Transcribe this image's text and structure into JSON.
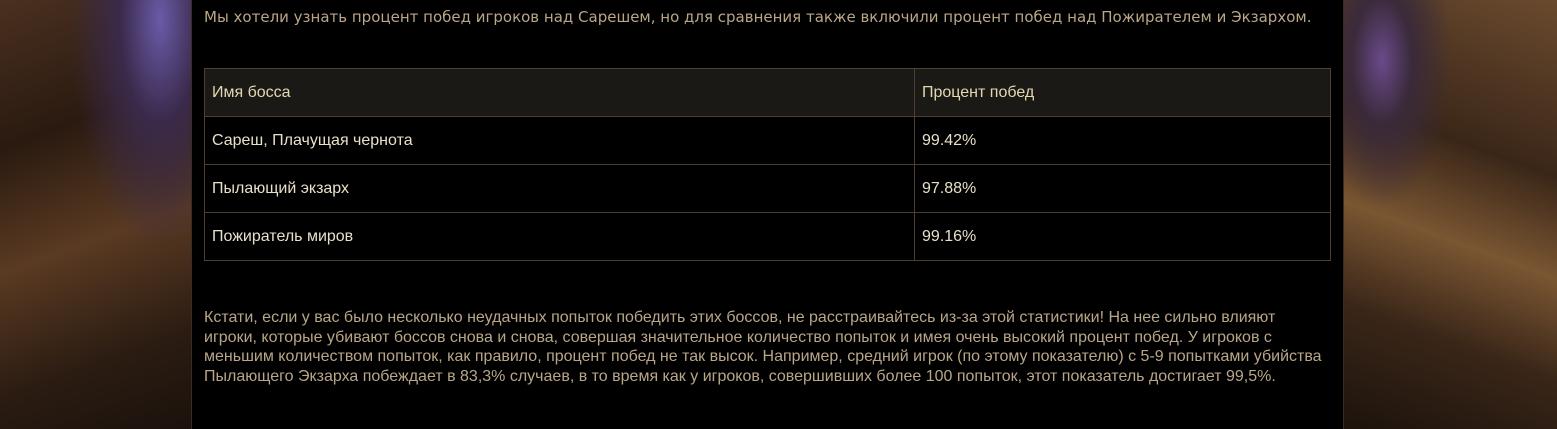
{
  "intro": "Мы хотели узнать процент побед игроков над Сарешем, но для сравнения также включили процент побед над Пожирателем и Экзархом.",
  "table": {
    "headers": [
      "Имя босса",
      "Процент побед"
    ],
    "rows": [
      [
        "Сареш, Плачущая чернота",
        "99.42%"
      ],
      [
        "Пылающий экзарх",
        "97.88%"
      ],
      [
        "Пожиратель миров",
        "99.16%"
      ]
    ]
  },
  "note": "Кстати, если у вас было несколько неудачных попыток победить этих боссов, не расстраивайтесь из-за этой статистики! На нее сильно влияют игроки, которые убивают боссов снова и снова, совершая значительное количество попыток и имея очень высокий процент побед. У игроков с меньшим количеством попыток, как правило, процент побед не так высок. Например, средний игрок (по этому показателю) с 5-9 попытками убийства Пылающего Экзарха побеждает в 83,3% случаев, в то время как у игроков, совершивших более 100 попыток, этот показатель достигает 99,5%."
}
